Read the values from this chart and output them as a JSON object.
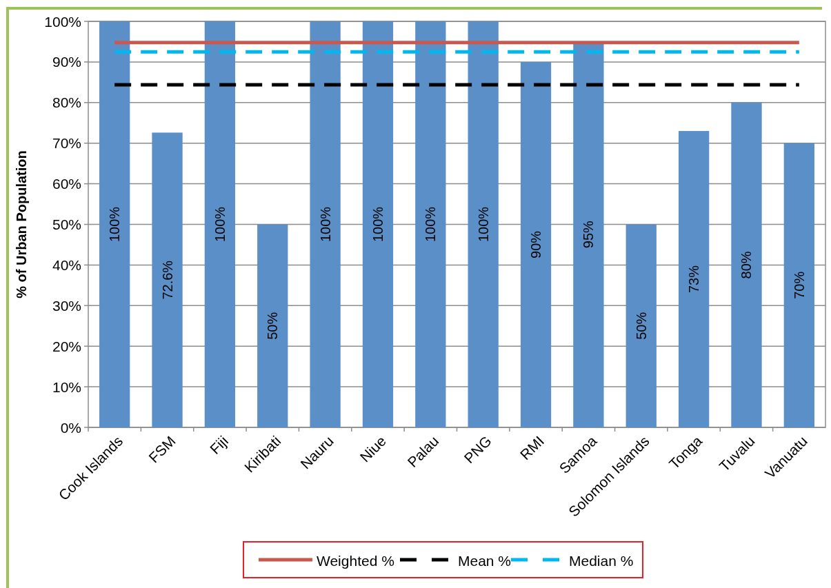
{
  "chart_data": {
    "type": "bar",
    "ylabel": "% of Urban Population",
    "categories": [
      "Cook Islands",
      "FSM",
      "Fiji",
      "Kiribati",
      "Nauru",
      "Niue",
      "Palau",
      "PNG",
      "RMI",
      "Samoa",
      "Solomon Islands",
      "Tonga",
      "Tuvalu",
      "Vanuatu"
    ],
    "values": [
      100,
      72.6,
      100,
      50,
      100,
      100,
      100,
      100,
      90,
      95,
      50,
      73,
      80,
      70
    ],
    "value_labels": [
      "100%",
      "72.6%",
      "100%",
      "50%",
      "100%",
      "100%",
      "100%",
      "100%",
      "90%",
      "95%",
      "50%",
      "73%",
      "80%",
      "70%"
    ],
    "color": "#5a8fc8",
    "series": [
      {
        "name": "Weighted %",
        "type": "line",
        "color": "#c9584f",
        "line_style": "solid",
        "values": [
          94.8,
          94.8,
          94.8,
          94.8,
          94.8,
          94.8,
          94.8,
          94.8,
          94.8,
          94.8,
          94.8,
          94.8,
          94.8,
          94.8
        ]
      },
      {
        "name": "Mean %",
        "type": "line",
        "color": "#000000",
        "line_style": "dashed",
        "values": [
          84.4,
          84.4,
          84.4,
          84.4,
          84.4,
          84.4,
          84.4,
          84.4,
          84.4,
          84.4,
          84.4,
          84.4,
          84.4,
          84.4
        ]
      },
      {
        "name": "Median %",
        "type": "line",
        "color": "#00b8f0",
        "line_style": "dashed",
        "values": [
          92.5,
          92.5,
          92.5,
          92.5,
          92.5,
          92.5,
          92.5,
          92.5,
          92.5,
          92.5,
          92.5,
          92.5,
          92.5,
          92.5
        ]
      }
    ],
    "ylim": [
      0,
      100
    ],
    "yticks": [
      {
        "value": 0,
        "label": "0%"
      },
      {
        "value": 10,
        "label": "10%"
      },
      {
        "value": 20,
        "label": "20%"
      },
      {
        "value": 30,
        "label": "30%"
      },
      {
        "value": 40,
        "label": "40%"
      },
      {
        "value": 50,
        "label": "50%"
      },
      {
        "value": 60,
        "label": "60%"
      },
      {
        "value": 70,
        "label": "70%"
      },
      {
        "value": 80,
        "label": "80%"
      },
      {
        "value": 90,
        "label": "90%"
      },
      {
        "value": 100,
        "label": "100%"
      }
    ],
    "grid": "y",
    "legend": "bottom"
  }
}
